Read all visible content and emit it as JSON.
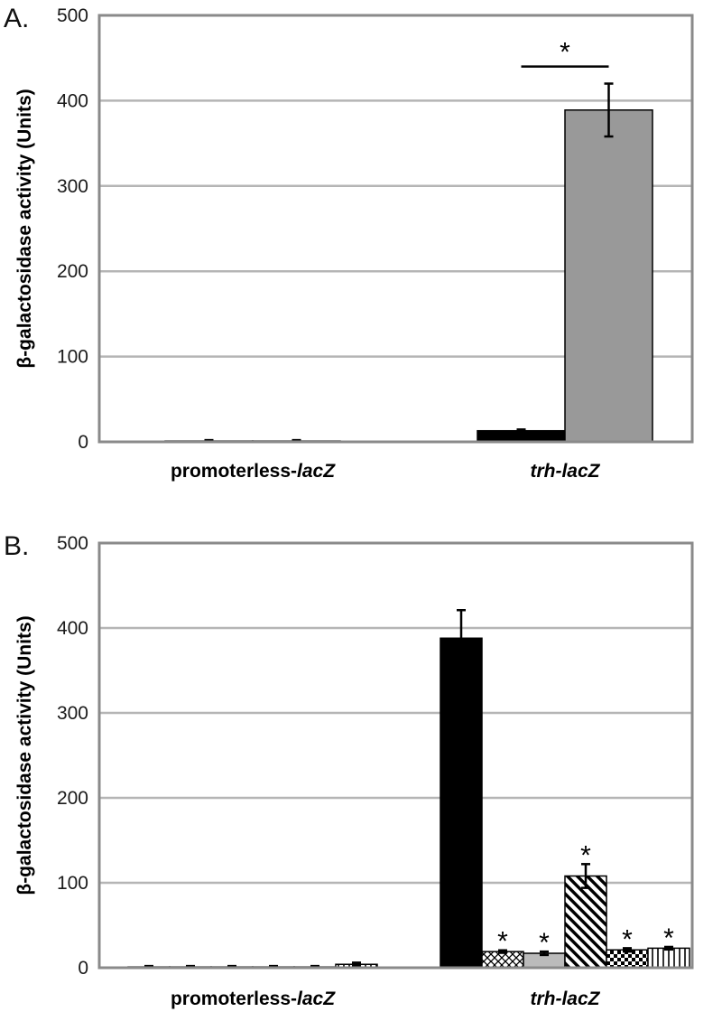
{
  "chart_data": [
    {
      "panel_label": "A.",
      "type": "bar",
      "ylabel": "β-galactosidase activity (Units)",
      "ylim": [
        0,
        500
      ],
      "yticks": [
        "0",
        "100",
        "200",
        "300",
        "400",
        "500"
      ],
      "grid": true,
      "categories": [
        "promoterless-lacZ",
        "trh-lacZ"
      ],
      "series": [
        {
          "fill": "#000000",
          "values": [
            1,
            13
          ],
          "errors": [
            1,
            1.5
          ]
        },
        {
          "fill": "#999999",
          "values": [
            1,
            389
          ],
          "errors": [
            1,
            31
          ]
        }
      ],
      "annotations": [
        {
          "text": "*",
          "type": "significance-bracket",
          "between": [
            0,
            1
          ],
          "category": 1,
          "y": 440
        }
      ]
    },
    {
      "panel_label": "B.",
      "type": "bar",
      "ylabel": "β-galactosidase activity (Units)",
      "ylim": [
        0,
        500
      ],
      "yticks": [
        "0",
        "100",
        "200",
        "300",
        "400",
        "500"
      ],
      "grid": true,
      "categories": [
        "promoterless-lacZ",
        "trh-lacZ"
      ],
      "series": [
        {
          "fill": "#000000",
          "pattern": "solid",
          "values": [
            1,
            388
          ],
          "errors": [
            1,
            33
          ]
        },
        {
          "fill": "#ffffff",
          "pattern": "crosshatch",
          "values": [
            1,
            19
          ],
          "errors": [
            1,
            1.5
          ],
          "star": [
            false,
            true
          ]
        },
        {
          "fill": "#bbbbbb",
          "pattern": "solid",
          "values": [
            1,
            17
          ],
          "errors": [
            1,
            2
          ],
          "star": [
            false,
            true
          ]
        },
        {
          "fill": "#ffffff",
          "pattern": "diagonal",
          "values": [
            1,
            108
          ],
          "errors": [
            1,
            14
          ],
          "star": [
            false,
            true
          ]
        },
        {
          "fill": "#ffffff",
          "pattern": "checker",
          "values": [
            1,
            21
          ],
          "errors": [
            1,
            2
          ],
          "star": [
            false,
            true
          ]
        },
        {
          "fill": "#ffffff",
          "pattern": "vertical",
          "values": [
            4,
            23
          ],
          "errors": [
            2,
            1.5
          ],
          "star": [
            false,
            true
          ]
        }
      ],
      "star_text": "*"
    }
  ]
}
